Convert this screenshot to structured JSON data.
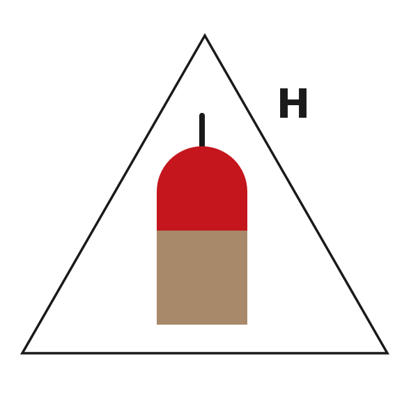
{
  "sign": {
    "letter": "H",
    "colors": {
      "background": "#ffffff",
      "outline": "#1a1a1a",
      "cylinder_top": "#c4161c",
      "cylinder_body": "#a8896a",
      "stem": "#1a1a1a",
      "letter": "#1a1a1a"
    },
    "icons": {
      "frame": "triangle-outline-icon",
      "extinguisher": "gas-cylinder-icon"
    }
  }
}
